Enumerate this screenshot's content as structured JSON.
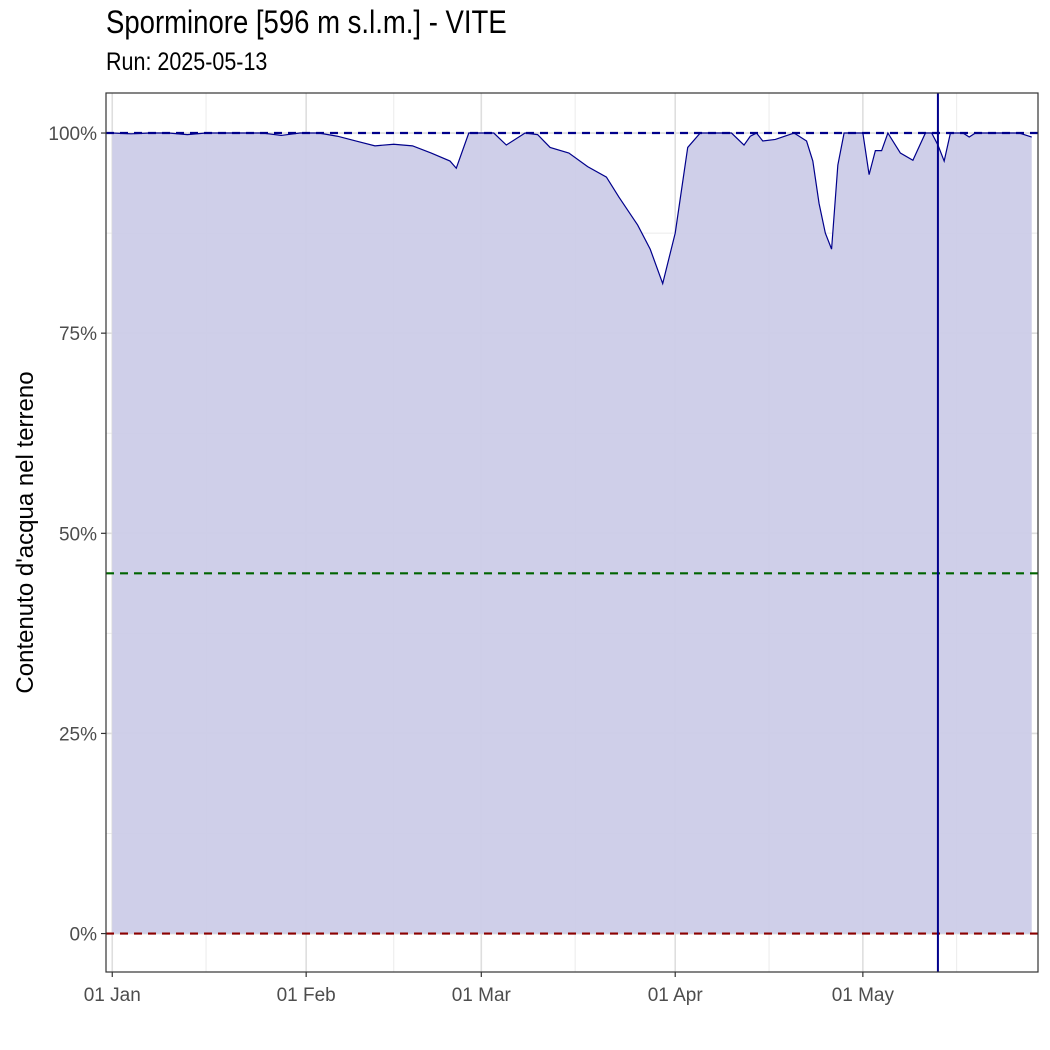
{
  "chart_data": {
    "type": "area",
    "title": "Sporminore [596 m s.l.m.] - VITE",
    "subtitle": "Run: 2025-05-13",
    "xlabel": "",
    "ylabel": "Contenuto d'acqua nel terreno",
    "x_tick_labels": [
      "01 Jan",
      "01 Feb",
      "01 Mar",
      "01 Apr",
      "01 May"
    ],
    "y_tick_labels": [
      "0%",
      "25%",
      "50%",
      "75%",
      "100%"
    ],
    "y_ticks": [
      0,
      25,
      50,
      75,
      100
    ],
    "ylim": [
      -4.8,
      105
    ],
    "xlim": [
      "2024-12-31",
      "2025-05-29"
    ],
    "grid": true,
    "run_date": "2025-05-13",
    "series": [
      {
        "color": "#00008b",
        "fill": "#cccce8",
        "x": [
          "2025-01-01",
          "2025-01-04",
          "2025-01-07",
          "2025-01-10",
          "2025-01-13",
          "2025-01-16",
          "2025-01-19",
          "2025-01-22",
          "2025-01-25",
          "2025-01-28",
          "2025-01-31",
          "2025-02-03",
          "2025-02-06",
          "2025-02-09",
          "2025-02-12",
          "2025-02-15",
          "2025-02-18",
          "2025-02-21",
          "2025-02-24",
          "2025-02-25",
          "2025-02-27",
          "2025-02-28",
          "2025-03-01",
          "2025-03-03",
          "2025-03-05",
          "2025-03-08",
          "2025-03-10",
          "2025-03-12",
          "2025-03-15",
          "2025-03-18",
          "2025-03-21",
          "2025-03-23",
          "2025-03-26",
          "2025-03-28",
          "2025-03-30",
          "2025-04-01",
          "2025-04-03",
          "2025-04-05",
          "2025-04-08",
          "2025-04-10",
          "2025-04-12",
          "2025-04-13",
          "2025-04-14",
          "2025-04-15",
          "2025-04-17",
          "2025-04-20",
          "2025-04-22",
          "2025-04-23",
          "2025-04-24",
          "2025-04-25",
          "2025-04-26",
          "2025-04-27",
          "2025-04-28",
          "2025-04-29",
          "2025-05-01",
          "2025-05-02",
          "2025-05-03",
          "2025-05-04",
          "2025-05-05",
          "2025-05-07",
          "2025-05-09",
          "2025-05-11",
          "2025-05-12",
          "2025-05-13",
          "2025-05-14",
          "2025-05-15",
          "2025-05-16",
          "2025-05-17",
          "2025-05-18",
          "2025-05-19",
          "2025-05-20",
          "2025-05-21",
          "2025-05-22",
          "2025-05-24",
          "2025-05-26",
          "2025-05-28"
        ],
        "y": [
          100,
          99.9,
          100,
          100,
          99.8,
          100,
          100,
          100,
          100,
          99.7,
          100,
          100,
          99.6,
          99.0,
          98.4,
          98.6,
          98.4,
          97.5,
          96.5,
          95.6,
          100,
          100,
          100,
          100,
          98.5,
          100,
          99.8,
          98.2,
          97.5,
          95.8,
          94.5,
          92,
          88.5,
          85.5,
          81.2,
          87.5,
          98.2,
          100,
          100,
          100,
          98.5,
          99.6,
          100,
          99.0,
          99.2,
          100,
          99,
          96.5,
          91.2,
          87.5,
          85.5,
          96,
          100,
          100,
          100,
          94.8,
          97.8,
          97.8,
          100,
          97.5,
          96.6,
          100,
          100,
          98.5,
          96.5,
          100,
          100,
          100,
          99.5,
          100,
          100,
          100,
          100,
          100,
          100,
          99.5
        ]
      }
    ],
    "reference_lines": [
      {
        "value": 100,
        "color": "#00008b",
        "style": "dashed"
      },
      {
        "value": 45,
        "color": "#006400",
        "style": "dashed"
      },
      {
        "value": 0,
        "color": "#8b0000",
        "style": "dashed"
      }
    ],
    "vertical_line": {
      "date": "2025-05-13",
      "color": "#00008b"
    }
  }
}
